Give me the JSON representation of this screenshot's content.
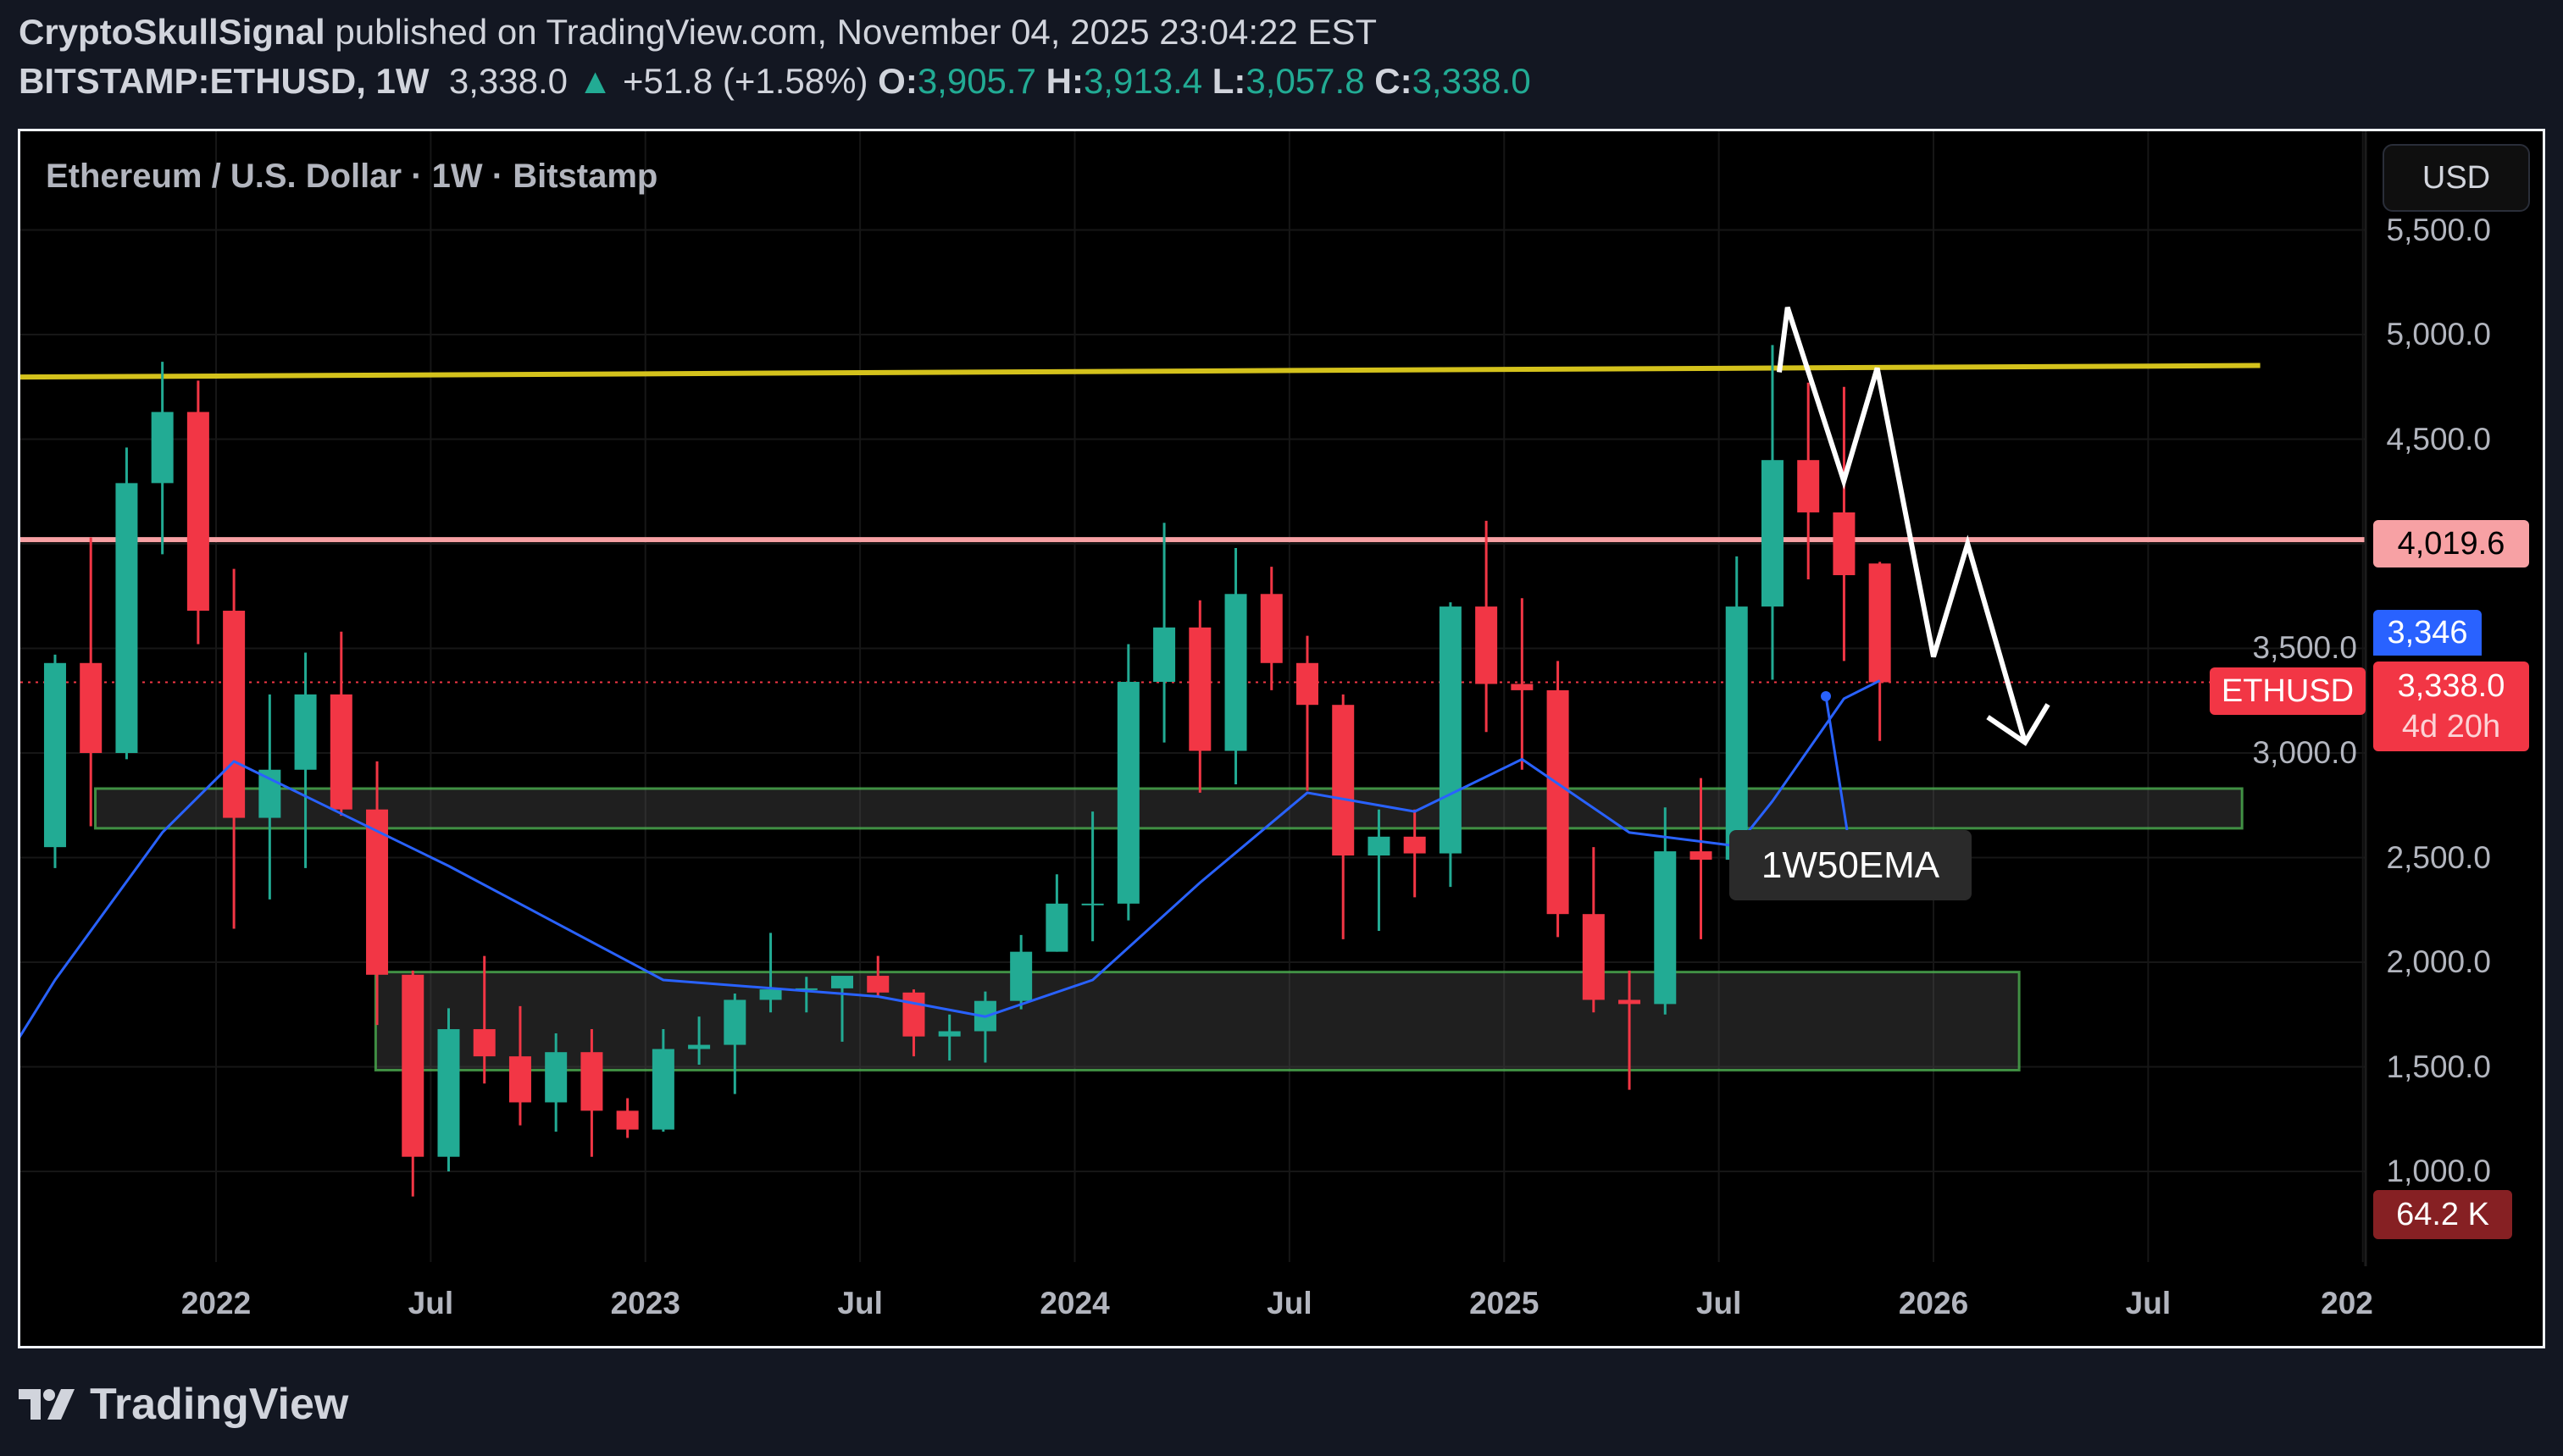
{
  "header": {
    "author": "CryptoSkullSignal",
    "published": "published on TradingView.com, November 04, 2025 23:04:22 EST",
    "symbol": "BITSTAMP:ETHUSD, 1W",
    "last": "3,338.0",
    "change": "+51.8 (+1.58%)",
    "o_label": "O:",
    "o": "3,905.7",
    "h_label": "H:",
    "h": "3,913.4",
    "l_label": "L:",
    "l": "3,057.8",
    "c_label": "C:",
    "c": "3,338.0"
  },
  "chart_title": "Ethereum / U.S. Dollar · 1W · Bitstamp",
  "currency_button": "USD",
  "price_tags": {
    "resistance": "4,019.6",
    "ema": "3,346",
    "last_price": "3,338.0",
    "countdown": "4d 20h",
    "symbol": "ETHUSD",
    "volume": "64.2 K"
  },
  "ema_label": "1W50EMA",
  "logo_text": "TradingView",
  "colors": {
    "up": "#22ab94",
    "down": "#f23645",
    "ema": "#2962ff",
    "resistance_line": "#f7a1a4",
    "trend_line": "#d4c21c",
    "zone_border": "#4caf50",
    "projection": "#ffffff"
  },
  "chart_data": {
    "type": "candlestick",
    "interval_shown": "1W",
    "note_values": "approximate monthly aggregation read from chart",
    "y_ticks": [
      "5,500.0",
      "5,000.0",
      "4,500.0",
      "4,000.0",
      "3,500.0",
      "3,000.0",
      "2,500.0",
      "2,000.0",
      "1,500.0",
      "1,000.0"
    ],
    "y_tick_values": [
      5500,
      5000,
      4500,
      4000,
      3500,
      3000,
      2500,
      2000,
      1500,
      1000
    ],
    "ylim": [
      800,
      5550
    ],
    "x_ticks": [
      {
        "label": "2022",
        "date": "2022-01-01"
      },
      {
        "label": "Jul",
        "date": "2022-07-01"
      },
      {
        "label": "2023",
        "date": "2023-01-01"
      },
      {
        "label": "Jul",
        "date": "2023-07-01"
      },
      {
        "label": "2024",
        "date": "2024-01-01"
      },
      {
        "label": "Jul",
        "date": "2024-07-01"
      },
      {
        "label": "2025",
        "date": "2025-01-01"
      },
      {
        "label": "Jul",
        "date": "2025-07-01"
      },
      {
        "label": "2026",
        "date": "2026-01-01"
      },
      {
        "label": "Jul",
        "date": "2026-07-01"
      },
      {
        "label": "202",
        "date": "2027-01-01"
      }
    ],
    "candles": [
      [
        "2021-08",
        2550,
        3470,
        2450,
        3430
      ],
      [
        "2021-09",
        3430,
        4030,
        2650,
        3000
      ],
      [
        "2021-10",
        3000,
        4460,
        2970,
        4290
      ],
      [
        "2021-11",
        4290,
        4870,
        3950,
        4630
      ],
      [
        "2021-12",
        4630,
        4780,
        3520,
        3680
      ],
      [
        "2022-01",
        3680,
        3880,
        2160,
        2690
      ],
      [
        "2022-02",
        2690,
        3280,
        2300,
        2920
      ],
      [
        "2022-03",
        2920,
        3480,
        2450,
        3280
      ],
      [
        "2022-04",
        3280,
        3580,
        2700,
        2730
      ],
      [
        "2022-05",
        2730,
        2960,
        1700,
        1940
      ],
      [
        "2022-06",
        1940,
        1960,
        880,
        1070
      ],
      [
        "2022-07",
        1070,
        1780,
        1000,
        1680
      ],
      [
        "2022-08",
        1680,
        2030,
        1420,
        1550
      ],
      [
        "2022-09",
        1550,
        1790,
        1220,
        1330
      ],
      [
        "2022-10",
        1330,
        1660,
        1190,
        1570
      ],
      [
        "2022-11",
        1570,
        1680,
        1070,
        1290
      ],
      [
        "2022-12",
        1290,
        1350,
        1160,
        1200
      ],
      [
        "2023-01",
        1200,
        1680,
        1190,
        1585
      ],
      [
        "2023-02",
        1585,
        1740,
        1510,
        1605
      ],
      [
        "2023-03",
        1605,
        1850,
        1370,
        1820
      ],
      [
        "2023-04",
        1820,
        2140,
        1760,
        1870
      ],
      [
        "2023-05",
        1870,
        1930,
        1760,
        1875
      ],
      [
        "2023-06",
        1875,
        1930,
        1620,
        1935
      ],
      [
        "2023-07",
        1935,
        2030,
        1830,
        1855
      ],
      [
        "2023-08",
        1855,
        1870,
        1550,
        1645
      ],
      [
        "2023-09",
        1645,
        1750,
        1530,
        1670
      ],
      [
        "2023-10",
        1670,
        1860,
        1520,
        1815
      ],
      [
        "2023-11",
        1815,
        2130,
        1775,
        2050
      ],
      [
        "2023-12",
        2050,
        2420,
        2050,
        2280
      ],
      [
        "2024-01",
        2280,
        2720,
        2100,
        2280
      ],
      [
        "2024-02",
        2280,
        3520,
        2200,
        3340
      ],
      [
        "2024-03",
        3340,
        4100,
        3050,
        3600
      ],
      [
        "2024-04",
        3600,
        3730,
        2810,
        3010
      ],
      [
        "2024-05",
        3010,
        3980,
        2850,
        3760
      ],
      [
        "2024-06",
        3760,
        3890,
        3300,
        3430
      ],
      [
        "2024-07",
        3430,
        3560,
        2820,
        3230
      ],
      [
        "2024-08",
        3230,
        3280,
        2110,
        2510
      ],
      [
        "2024-09",
        2510,
        2730,
        2150,
        2600
      ],
      [
        "2024-10",
        2600,
        2730,
        2310,
        2520
      ],
      [
        "2024-11",
        2520,
        3720,
        2360,
        3700
      ],
      [
        "2024-12",
        3700,
        4110,
        3100,
        3330
      ],
      [
        "2025-01",
        3330,
        3740,
        2920,
        3300
      ],
      [
        "2025-02",
        3300,
        3440,
        2120,
        2230
      ],
      [
        "2025-03",
        2230,
        2550,
        1760,
        1820
      ],
      [
        "2025-04",
        1820,
        1960,
        1390,
        1800
      ],
      [
        "2025-05",
        1800,
        2740,
        1750,
        2530
      ],
      [
        "2025-06",
        2530,
        2880,
        2110,
        2490
      ],
      [
        "2025-07",
        2490,
        3940,
        2370,
        3700
      ],
      [
        "2025-08",
        3700,
        4950,
        3350,
        4400
      ],
      [
        "2025-09",
        4400,
        4770,
        3830,
        4150
      ],
      [
        "2025-10",
        4150,
        4750,
        3440,
        3850
      ],
      [
        "2025-11",
        3905.7,
        3913.4,
        3057.8,
        3338.0
      ]
    ],
    "ema50": [
      [
        "2021-07",
        1640
      ],
      [
        "2021-08",
        1915
      ],
      [
        "2021-11",
        2620
      ],
      [
        "2022-01",
        2960
      ],
      [
        "2022-07",
        2460
      ],
      [
        "2023-01",
        1915
      ],
      [
        "2023-07",
        1836
      ],
      [
        "2023-10",
        1740
      ],
      [
        "2024-01",
        1915
      ],
      [
        "2024-04",
        2380
      ],
      [
        "2024-07",
        2810
      ],
      [
        "2024-10",
        2720
      ],
      [
        "2025-01",
        2970
      ],
      [
        "2025-04",
        2620
      ],
      [
        "2025-07",
        2555
      ],
      [
        "2025-08",
        2770
      ],
      [
        "2025-10",
        3260
      ],
      [
        "2025-11",
        3346
      ]
    ],
    "horizontal_levels": [
      {
        "price": 4019.6
      },
      {
        "price": 3338.0,
        "style": "dotted"
      }
    ],
    "trend_line": [
      [
        "2021-07-15",
        4797
      ],
      [
        "2026-10-05",
        4852
      ]
    ],
    "zones": [
      {
        "from": "2021-09-20",
        "to": "2026-09-20",
        "low": 2640,
        "high": 2830
      },
      {
        "from": "2022-05-15",
        "to": "2026-03-13",
        "low": 1484,
        "high": 1953
      }
    ],
    "projection_path": [
      [
        "2025-08-22",
        4820
      ],
      [
        "2025-08-29",
        5130
      ],
      [
        "2025-10-16",
        4300
      ],
      [
        "2025-11-14",
        4840
      ],
      [
        "2026-01-01",
        3460
      ],
      [
        "2026-01-30",
        4000
      ],
      [
        "2026-03-18",
        3050
      ]
    ]
  }
}
